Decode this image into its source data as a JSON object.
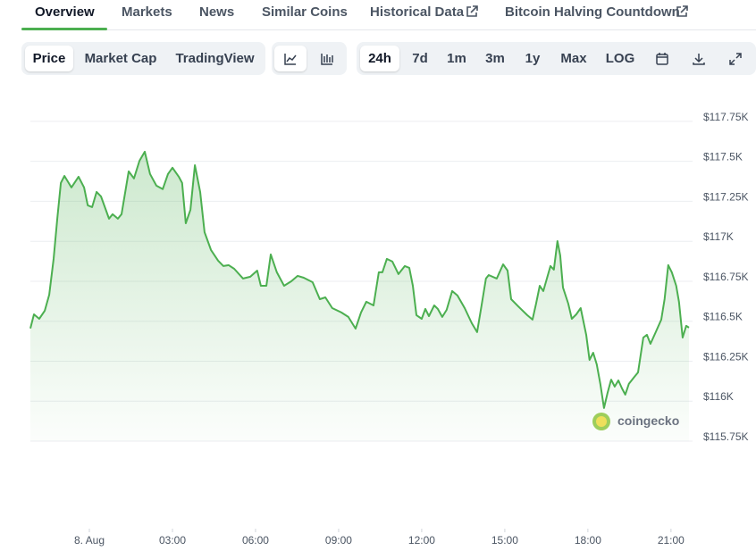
{
  "tabs": [
    "Overview",
    "Markets",
    "News",
    "Similar Coins",
    "Historical Data",
    "Bitcoin Halving Countdown"
  ],
  "chart_views": [
    "Price",
    "Market Cap",
    "TradingView"
  ],
  "ranges": [
    "24h",
    "7d",
    "1m",
    "3m",
    "1y",
    "Max",
    "LOG"
  ],
  "watermark": "coingecko",
  "chart_data": {
    "type": "area",
    "color": "#4caf50",
    "grid": true,
    "xlim": [
      -2.13,
      21.65
    ],
    "xticks": [
      {
        "value": 0,
        "label": "8. Aug"
      },
      {
        "value": 3,
        "label": "03:00"
      },
      {
        "value": 6,
        "label": "06:00"
      },
      {
        "value": 9,
        "label": "09:00"
      },
      {
        "value": 12,
        "label": "12:00"
      },
      {
        "value": 15,
        "label": "15:00"
      },
      {
        "value": 18,
        "label": "18:00"
      },
      {
        "value": 21,
        "label": "21:00"
      }
    ],
    "ylim": [
      115750,
      117850
    ],
    "yticks": [
      {
        "value": 115750,
        "label": "$115.75K"
      },
      {
        "value": 116000,
        "label": "$116K"
      },
      {
        "value": 116250,
        "label": "$116.25K"
      },
      {
        "value": 116500,
        "label": "$116.5K"
      },
      {
        "value": 116750,
        "label": "$116.75K"
      },
      {
        "value": 117000,
        "label": "$117K"
      },
      {
        "value": 117250,
        "label": "$117.25K"
      },
      {
        "value": 117500,
        "label": "$117.5K"
      },
      {
        "value": 117750,
        "label": "$117.75K"
      }
    ],
    "x": [
      -2.13,
      -2.0,
      -1.81,
      -1.61,
      -1.45,
      -1.29,
      -1.16,
      -1.03,
      -0.9,
      -0.65,
      -0.39,
      -0.19,
      -0.06,
      0.1,
      0.26,
      0.42,
      0.71,
      0.84,
      1.03,
      1.16,
      1.42,
      1.61,
      1.81,
      2.0,
      2.19,
      2.42,
      2.65,
      2.84,
      3.0,
      3.23,
      3.35,
      3.48,
      3.65,
      3.81,
      4.0,
      4.16,
      4.39,
      4.65,
      4.84,
      5.03,
      5.23,
      5.55,
      5.81,
      6.06,
      6.19,
      6.39,
      6.55,
      6.77,
      7.03,
      7.29,
      7.52,
      7.74,
      8.06,
      8.32,
      8.52,
      8.77,
      9.1,
      9.35,
      9.61,
      9.81,
      10.0,
      10.26,
      10.45,
      10.58,
      10.74,
      10.94,
      11.16,
      11.39,
      11.55,
      11.68,
      11.81,
      12.0,
      12.13,
      12.26,
      12.45,
      12.58,
      12.74,
      12.9,
      13.1,
      13.29,
      13.55,
      13.81,
      14.0,
      14.16,
      14.32,
      14.42,
      14.71,
      14.94,
      15.1,
      15.23,
      15.48,
      15.81,
      16.0,
      16.13,
      16.26,
      16.39,
      16.65,
      16.77,
      16.9,
      17.0,
      17.1,
      17.29,
      17.42,
      17.58,
      17.74,
      17.94,
      18.06,
      18.19,
      18.32,
      18.45,
      18.58,
      18.71,
      18.84,
      18.97,
      19.1,
      19.23,
      19.35,
      19.48,
      19.68,
      19.81,
      20.0,
      20.13,
      20.26,
      20.45,
      20.65,
      20.77,
      20.9,
      21.03,
      21.19,
      21.29,
      21.42,
      21.55,
      21.65
    ],
    "values": [
      116455,
      116543,
      116515,
      116566,
      116666,
      116890,
      117141,
      117365,
      117409,
      117337,
      117404,
      117337,
      117225,
      117214,
      117309,
      117281,
      117141,
      117169,
      117141,
      117169,
      117437,
      117393,
      117504,
      117560,
      117421,
      117348,
      117326,
      117421,
      117460,
      117404,
      117365,
      117113,
      117197,
      117476,
      117309,
      117057,
      116946,
      116879,
      116845,
      116851,
      116828,
      116767,
      116778,
      116817,
      116722,
      116722,
      116918,
      116806,
      116722,
      116750,
      116784,
      116772,
      116744,
      116638,
      116649,
      116582,
      116555,
      116527,
      116454,
      116555,
      116622,
      116599,
      116806,
      116806,
      116890,
      116873,
      116795,
      116845,
      116834,
      116722,
      116538,
      116515,
      116577,
      116532,
      116599,
      116577,
      116527,
      116571,
      116689,
      116661,
      116582,
      116487,
      116432,
      116599,
      116767,
      116789,
      116767,
      116856,
      116817,
      116638,
      116594,
      116538,
      116510,
      116610,
      116722,
      116689,
      116845,
      116823,
      117001,
      116912,
      116711,
      116610,
      116515,
      116543,
      116582,
      116415,
      116258,
      116303,
      116230,
      116108,
      115957,
      116052,
      116135,
      116091,
      116130,
      116080,
      116041,
      116108,
      116152,
      116180,
      116398,
      116415,
      116359,
      116432,
      116510,
      116638,
      116851,
      116806,
      116722,
      116622,
      116398,
      116471,
      116460
    ]
  }
}
